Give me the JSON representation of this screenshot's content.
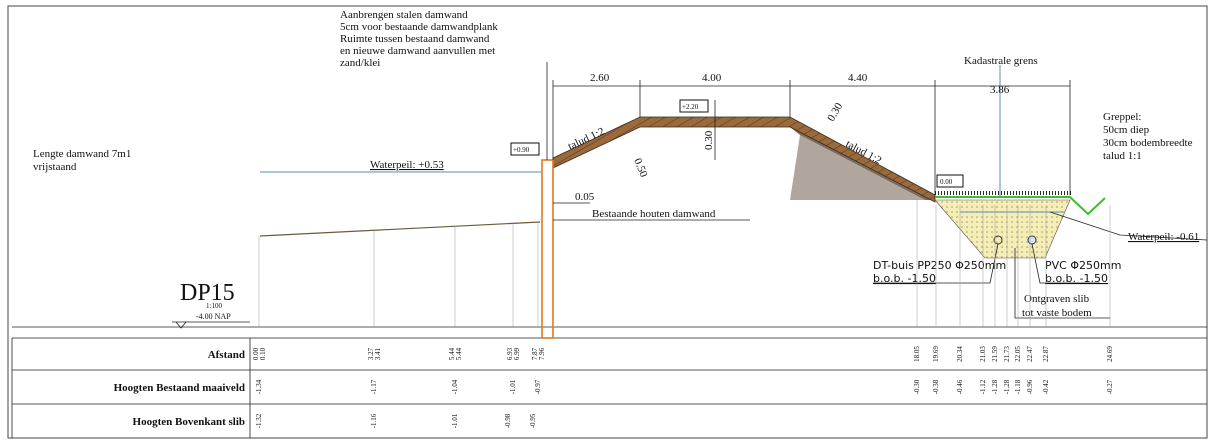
{
  "drawing": {
    "title": "DP15",
    "scale": "1:100",
    "reference": "-4.00 NAP",
    "note_sheetpile": [
      "Aanbrengen stalen damwand",
      "5cm voor bestaande damwandplank",
      "Ruimte tussen bestaand damwand",
      "en nieuwe damwand aanvullen met",
      "zand/klei"
    ],
    "note_length": [
      "Lengte damwand 7m1",
      "vrijstaand"
    ],
    "waterpeil_left": "Waterpeil: +0.53",
    "level_pile": "+0.90",
    "offset": "0.05",
    "existing_pile": "Bestaande houten damwand",
    "dimensions": [
      "2.60",
      "4.00",
      "4.40",
      "3.86"
    ],
    "kadastrale_grens": "Kadastrale grens",
    "level_crest": "+2.20",
    "crest_thickness": "0.30",
    "slope_thickness": "0.30",
    "slope_left": "talud 1:2",
    "slope_right": "talud 1:2",
    "layer_thickness": "0.50",
    "level_toe": "0.00",
    "greppel": [
      "Greppel:",
      "50cm diep",
      "30cm bodembreedte",
      "talud 1:1"
    ],
    "waterpeil_right": "Waterpeil: -0.61",
    "dt_pipe": [
      "DT-buis PP250 Φ250mm",
      "b.o.b. -1.50"
    ],
    "pvc_pipe": [
      "PVC Φ250mm",
      "b.o.b. -1.50"
    ],
    "excavation": [
      "Ontgraven slib",
      "tot vaste bodem"
    ]
  },
  "table": {
    "rows": [
      {
        "label": "Afstand",
        "values": [
          "0.00",
          "0.10",
          "3.27",
          "3.41",
          "5.44",
          "5.44",
          "6.93",
          "6.99",
          "7.87",
          "7.96",
          "18.05",
          "19.69",
          "20.34",
          "21.03",
          "21.59",
          "21.73",
          "22.05",
          "22.47",
          "22.87",
          "24.69"
        ]
      },
      {
        "label": "Hoogten Bestaand maaiveld",
        "values": [
          "-1.34",
          "-1.17",
          "-1.04",
          "-1.01",
          "-0.97",
          "-0.30",
          "-0.38",
          "-0.46",
          "-1.12",
          "-1.28",
          "-1.28",
          "-1.18",
          "-0.96",
          "-0.42",
          "-0.27"
        ]
      },
      {
        "label": "Hoogten Bovenkant slib",
        "values": [
          "-1.32",
          "-1.16",
          "-1.01",
          "-0.98",
          "-0.95"
        ]
      }
    ]
  }
}
